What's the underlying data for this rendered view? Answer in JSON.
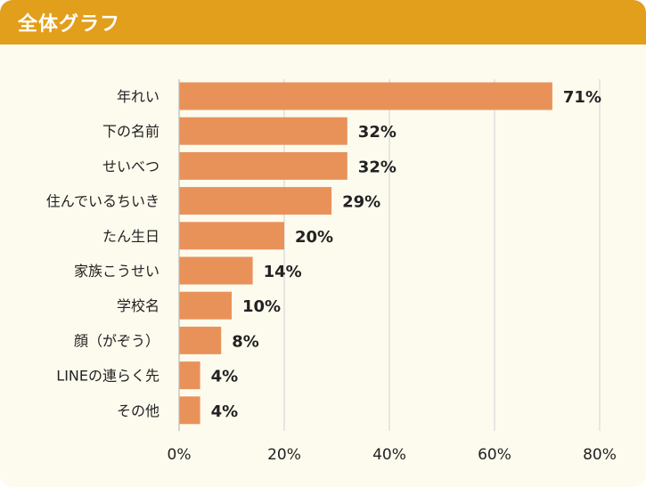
{
  "header": {
    "title": "全体グラフ"
  },
  "colors": {
    "header_bg": "#e29f1b",
    "panel_bg": "#fdfbee",
    "bar": "#e8925a",
    "grid": "#d9d9d9",
    "text": "#222222"
  },
  "chart_data": {
    "type": "bar",
    "orientation": "horizontal",
    "title": "全体グラフ",
    "xlabel": "",
    "ylabel": "",
    "categories": [
      "年れい",
      "下の名前",
      "せいべつ",
      "住んでいるちいき",
      "たん生日",
      "家族こうせい",
      "学校名",
      "顔（がぞう）",
      "LINEの連らく先",
      "その他"
    ],
    "values": [
      71,
      32,
      32,
      29,
      20,
      14,
      10,
      8,
      4,
      4
    ],
    "value_labels": [
      "71%",
      "32%",
      "32%",
      "29%",
      "20%",
      "14%",
      "10%",
      "8%",
      "4%",
      "4%"
    ],
    "xlim": [
      0,
      80
    ],
    "ticks": [
      0,
      20,
      40,
      60,
      80
    ],
    "tick_labels": [
      "0%",
      "20%",
      "40%",
      "60%",
      "80%"
    ],
    "grid": true
  }
}
